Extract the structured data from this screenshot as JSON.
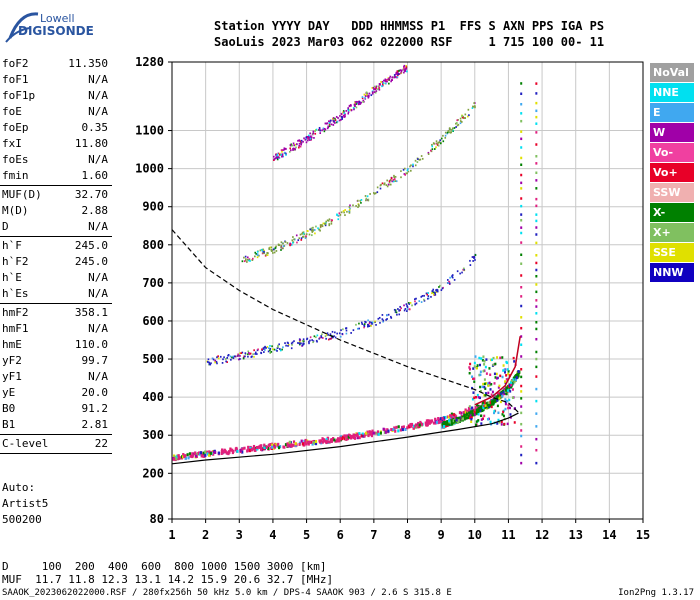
{
  "logo": {
    "line1": "Lowell",
    "line2": "DIGISONDE"
  },
  "header": {
    "line1": "Station YYYY DAY   DDD HHMMSS P1  FFS S AXN PPS IGA PS",
    "line2": "SaoLuis 2023 Mar03 062 022000 RSF     1 715 100 00- 11"
  },
  "params": [
    {
      "k": "foF2",
      "v": "11.350"
    },
    {
      "k": "foF1",
      "v": "N/A"
    },
    {
      "k": "foF1p",
      "v": "N/A"
    },
    {
      "k": "foE",
      "v": "N/A"
    },
    {
      "k": "foEp",
      "v": "0.35"
    },
    {
      "k": "fxI",
      "v": "11.80"
    },
    {
      "k": "foEs",
      "v": "N/A"
    },
    {
      "k": "fmin",
      "v": "1.60"
    },
    {
      "k": "MUF(D)",
      "v": "32.70",
      "sep": true
    },
    {
      "k": "M(D)",
      "v": "2.88"
    },
    {
      "k": "D",
      "v": "N/A"
    },
    {
      "k": "h`F",
      "v": "245.0",
      "sep": true
    },
    {
      "k": "h`F2",
      "v": "245.0"
    },
    {
      "k": "h`E",
      "v": "N/A"
    },
    {
      "k": "h`Es",
      "v": "N/A"
    },
    {
      "k": "hmF2",
      "v": "358.1",
      "sep": true
    },
    {
      "k": "hmF1",
      "v": "N/A"
    },
    {
      "k": "hmE",
      "v": "110.0"
    },
    {
      "k": "yF2",
      "v": "99.7"
    },
    {
      "k": "yF1",
      "v": "N/A"
    },
    {
      "k": "yE",
      "v": "20.0"
    },
    {
      "k": "B0",
      "v": "91.2"
    },
    {
      "k": "B1",
      "v": "2.81"
    },
    {
      "k": "C-level",
      "v": "22",
      "sep": true
    }
  ],
  "auto": {
    "l1": "Auto:",
    "l2": "Artist5",
    "l3": "500200"
  },
  "legend": [
    {
      "label": "NoVal",
      "color": "#a0a0a0"
    },
    {
      "label": "NNE",
      "color": "#00e0f0"
    },
    {
      "label": "E",
      "color": "#40a8f0"
    },
    {
      "label": "W",
      "color": "#a000a8"
    },
    {
      "label": "Vo-",
      "color": "#f040a0"
    },
    {
      "label": "Vo+",
      "color": "#e80028"
    },
    {
      "label": "SSW",
      "color": "#f0b0b0"
    },
    {
      "label": "X-",
      "color": "#008000"
    },
    {
      "label": "X+",
      "color": "#80c060"
    },
    {
      "label": "SSE",
      "color": "#e0e000"
    },
    {
      "label": "NNW",
      "color": "#1000c0"
    }
  ],
  "footer": {
    "line1": "D     100  200  400  600  800 1000 1500 3000 [km]",
    "line2": "MUF  11.7 11.8 12.3 13.1 14.2 15.9 20.6 32.7 [MHz]",
    "line3": "SAAOK_2023062022000.RSF / 280fx256h 50 kHz 5.0 km / DPS-4 SAAOK 903 / 2.6 S 315.8 E",
    "version": "Ion2Png 1.3.17"
  },
  "chart_data": {
    "type": "scatter",
    "xlim": [
      1,
      15
    ],
    "ylim": [
      80,
      1280
    ],
    "x_ticks": [
      1,
      2,
      3,
      4,
      5,
      6,
      7,
      8,
      9,
      10,
      11,
      12,
      13,
      14,
      15
    ],
    "y_ticks": [
      80,
      200,
      300,
      400,
      500,
      600,
      700,
      800,
      900,
      1000,
      1100,
      1280
    ],
    "grid": true,
    "legend_position": "right",
    "series": [
      {
        "trace": "O-trace 1st hop",
        "color": "#e0207a",
        "x": [
          1.0,
          2.0,
          3.0,
          4.0,
          5.0,
          6.0,
          7.0,
          8.0,
          9.0,
          9.5,
          10.0,
          10.5,
          11.0
        ],
        "y": [
          245,
          255,
          265,
          275,
          285,
          295,
          310,
          325,
          345,
          360,
          375,
          395,
          430
        ]
      },
      {
        "trace": "X-trace 1st hop",
        "color": "#008000",
        "x": [
          9.0,
          9.5,
          10.0,
          10.5,
          11.0,
          11.3
        ],
        "y": [
          330,
          345,
          365,
          390,
          430,
          470
        ]
      },
      {
        "trace": "2nd hop",
        "color": "#2020c0",
        "x": [
          2.0,
          3.0,
          4.0,
          5.0,
          6.0,
          7.0,
          8.0,
          9.0,
          10.0
        ],
        "y": [
          495,
          510,
          530,
          550,
          570,
          600,
          640,
          690,
          770
        ]
      },
      {
        "trace": "3rd hop",
        "color": "#80a040",
        "x": [
          3.0,
          4.0,
          5.0,
          6.0,
          7.0,
          8.0,
          9.0,
          10.0
        ],
        "y": [
          760,
          790,
          830,
          880,
          940,
          1000,
          1080,
          1170
        ]
      },
      {
        "trace": "4th hop",
        "color": "#a000a8",
        "x": [
          4.0,
          5.0,
          6.0,
          7.0,
          8.0
        ],
        "y": [
          1030,
          1080,
          1140,
          1210,
          1270
        ]
      }
    ],
    "profile_curve": {
      "x": [
        1.0,
        2.0,
        4.0,
        6.0,
        8.0,
        9.5,
        10.5,
        11.0,
        11.3
      ],
      "y": [
        225,
        235,
        250,
        270,
        295,
        315,
        330,
        345,
        358
      ]
    },
    "muf_curve": {
      "x": [
        1.0,
        2.0,
        3.0,
        4.0,
        5.0,
        6.0,
        7.0,
        8.0,
        9.0,
        10.0,
        10.5,
        11.0,
        11.3
      ],
      "y": [
        840,
        740,
        680,
        630,
        590,
        550,
        515,
        480,
        450,
        420,
        400,
        385,
        360
      ]
    },
    "fixed_freq_markers": [
      11.35,
      11.8
    ]
  }
}
